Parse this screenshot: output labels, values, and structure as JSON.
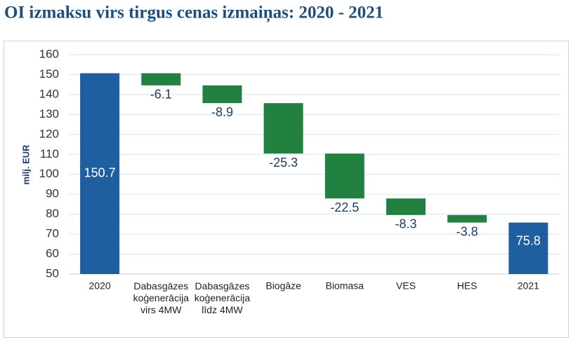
{
  "chart_data": {
    "type": "waterfall",
    "title": "OI izmaksu virs tirgus cenas izmaiņas: 2020 - 2021",
    "y_label": "milj. EUR",
    "categories": [
      "2020",
      "Dabasgāzes\nkoģenerācija\nvirs 4MW",
      "Dabasgāzes\nkoģenerācija\nlīdz 4MW",
      "Biogāze",
      "Biomasa",
      "VES",
      "HES",
      "2021"
    ],
    "values": [
      150.7,
      -6.1,
      -8.9,
      -25.3,
      -22.5,
      -8.3,
      -3.8,
      75.8
    ],
    "total_color": "#1f5fa0",
    "delta_color": "#228040",
    "ylim": [
      50,
      160
    ],
    "yticks": [
      50,
      60,
      70,
      80,
      90,
      100,
      110,
      120,
      130,
      140,
      150,
      160
    ],
    "grid": true
  }
}
